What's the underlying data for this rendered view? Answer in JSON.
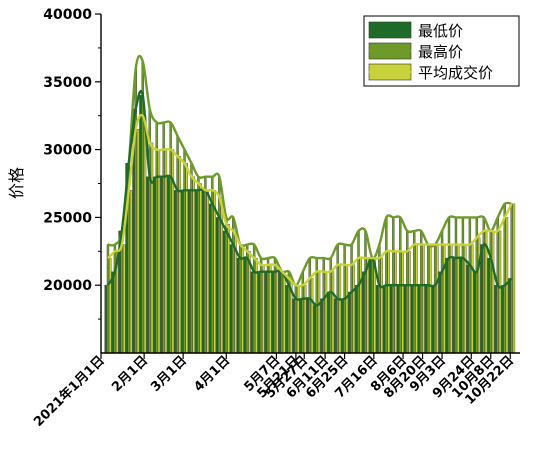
{
  "chart_data": {
    "type": "bar",
    "title": "",
    "xlabel": "",
    "ylabel": "价格",
    "ylim": [
      15000,
      40000
    ],
    "yticks": [
      20000,
      25000,
      30000,
      35000,
      40000
    ],
    "xlim": [
      "2021-01-01",
      "2021-10-29"
    ],
    "x_tick_dates": [
      "2021-01-01",
      "2021-02-01",
      "2021-03-01",
      "2021-04-01",
      "2021-05-07",
      "2021-05-21",
      "2021-05-27",
      "2021-06-11",
      "2021-06-25",
      "2021-07-16",
      "2021-08-06",
      "2021-08-20",
      "2021-09-03",
      "2021-09-24",
      "2021-10-08",
      "2021-10-22"
    ],
    "x_tick_labels": [
      "2021年1月1日",
      "2月1日",
      "3月1日",
      "4月1日",
      "5月7日",
      "5月21日",
      "5月27日",
      "6月11日",
      "6月25日",
      "7月16日",
      "8月6日",
      "8月20日",
      "9月3日",
      "9月24日",
      "10月8日",
      "10月22日"
    ],
    "legend_position": "top-right",
    "dates": [
      "2021-01-06",
      "2021-01-11",
      "2021-01-16",
      "2021-01-21",
      "2021-01-26",
      "2021-01-31",
      "2021-02-05",
      "2021-02-10",
      "2021-02-15",
      "2021-02-20",
      "2021-02-25",
      "2021-03-02",
      "2021-03-07",
      "2021-03-12",
      "2021-03-17",
      "2021-03-22",
      "2021-03-27",
      "2021-04-01",
      "2021-04-06",
      "2021-04-11",
      "2021-04-16",
      "2021-04-21",
      "2021-04-26",
      "2021-05-01",
      "2021-05-06",
      "2021-05-11",
      "2021-05-16",
      "2021-05-21",
      "2021-05-26",
      "2021-05-31",
      "2021-06-05",
      "2021-06-10",
      "2021-06-15",
      "2021-06-20",
      "2021-06-25",
      "2021-06-30",
      "2021-07-05",
      "2021-07-10",
      "2021-07-15",
      "2021-07-20",
      "2021-07-25",
      "2021-07-30",
      "2021-08-04",
      "2021-08-09",
      "2021-08-14",
      "2021-08-19",
      "2021-08-24",
      "2021-08-29",
      "2021-09-03",
      "2021-09-08",
      "2021-09-13",
      "2021-09-18",
      "2021-09-23",
      "2021-09-28",
      "2021-10-03",
      "2021-10-08",
      "2021-10-13",
      "2021-10-18",
      "2021-10-23"
    ],
    "series": [
      {
        "name": "最低价",
        "color": "#1f6b2a",
        "values": [
          20000,
          21000,
          24000,
          29000,
          33000,
          34000,
          28000,
          28000,
          28000,
          28000,
          27000,
          27000,
          27000,
          27000,
          27000,
          26000,
          25000,
          24000,
          23000,
          22000,
          22000,
          21000,
          21000,
          21000,
          21000,
          21000,
          20000,
          19000,
          19000,
          19000,
          18500,
          19000,
          19500,
          19000,
          19000,
          19500,
          20000,
          21000,
          22000,
          20000,
          20000,
          20000,
          20000,
          20000,
          20000,
          20000,
          20000,
          20000,
          21000,
          22000,
          22000,
          22000,
          21500,
          21000,
          23000,
          22000,
          20000,
          20000,
          20500
        ]
      },
      {
        "name": "最高价",
        "color": "#6e9a2c",
        "values": [
          23000,
          23000,
          24000,
          29000,
          36000,
          36500,
          33000,
          32000,
          32000,
          32000,
          31000,
          30000,
          29000,
          28000,
          28000,
          28000,
          28000,
          25000,
          25000,
          23000,
          23000,
          23000,
          22000,
          22000,
          22000,
          21000,
          21000,
          20000,
          21000,
          22000,
          22000,
          22000,
          22000,
          23000,
          23000,
          23000,
          24000,
          24000,
          22000,
          23000,
          25000,
          25000,
          25000,
          24000,
          24000,
          24000,
          23000,
          23000,
          24000,
          25000,
          25000,
          25000,
          25000,
          25000,
          25000,
          24000,
          25000,
          26000,
          26000
        ]
      },
      {
        "name": "平均成交价",
        "color": "#c8d23a",
        "values": [
          22000,
          22500,
          23000,
          27000,
          31500,
          32500,
          30500,
          30000,
          30000,
          30000,
          29500,
          29000,
          28000,
          27500,
          27000,
          27000,
          26500,
          24500,
          24000,
          23000,
          22500,
          22000,
          21500,
          21500,
          21500,
          21000,
          20500,
          20000,
          20000,
          20500,
          21000,
          21000,
          21000,
          21500,
          21500,
          21500,
          22000,
          22000,
          22000,
          22000,
          22500,
          22500,
          22500,
          22500,
          23000,
          23000,
          23000,
          23000,
          23000,
          23000,
          23000,
          23000,
          23000,
          23500,
          24000,
          24000,
          24000,
          25000,
          26000
        ]
      }
    ]
  }
}
